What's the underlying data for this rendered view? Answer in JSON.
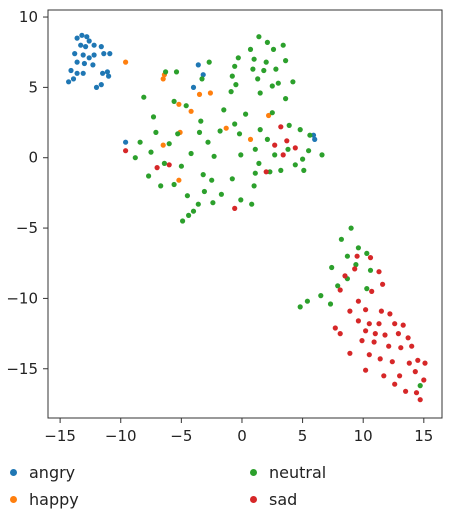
{
  "chart_data": {
    "type": "scatter",
    "title": "",
    "xlabel": "",
    "ylabel": "",
    "xlim": [
      -16,
      16.5
    ],
    "ylim": [
      -18.5,
      10.5
    ],
    "xticks": [
      -15,
      -10,
      -5,
      0,
      5,
      10,
      15
    ],
    "yticks": [
      -15,
      -10,
      -5,
      0,
      5,
      10
    ],
    "grid": false,
    "legend_position": "bottom",
    "series": [
      {
        "name": "angry",
        "color": "#1f77b4",
        "points": [
          [
            -13.6,
            8.5
          ],
          [
            -13.2,
            8.7
          ],
          [
            -12.8,
            8.6
          ],
          [
            -12.6,
            8.3
          ],
          [
            -13.3,
            8.0
          ],
          [
            -12.9,
            7.9
          ],
          [
            -12.2,
            8.0
          ],
          [
            -11.6,
            7.9
          ],
          [
            -13.8,
            7.4
          ],
          [
            -13.1,
            7.3
          ],
          [
            -12.6,
            7.1
          ],
          [
            -12.2,
            7.3
          ],
          [
            -11.4,
            7.4
          ],
          [
            -10.9,
            7.4
          ],
          [
            -13.6,
            6.8
          ],
          [
            -13.0,
            6.7
          ],
          [
            -12.3,
            6.6
          ],
          [
            -14.1,
            6.2
          ],
          [
            -13.6,
            6.0
          ],
          [
            -13.1,
            6.0
          ],
          [
            -11.5,
            6.0
          ],
          [
            -13.9,
            5.6
          ],
          [
            -14.3,
            5.4
          ],
          [
            -11.6,
            5.2
          ],
          [
            -11.0,
            5.8
          ],
          [
            -11.1,
            6.1
          ],
          [
            -12.0,
            5.0
          ],
          [
            -3.6,
            6.6
          ],
          [
            -3.2,
            5.9
          ],
          [
            -4.0,
            5.0
          ],
          [
            -9.6,
            1.1
          ],
          [
            5.9,
            1.6
          ],
          [
            6.0,
            1.3
          ]
        ]
      },
      {
        "name": "happy",
        "color": "#ff7f0e",
        "points": [
          [
            -9.6,
            6.8
          ],
          [
            -6.5,
            5.6
          ],
          [
            -6.4,
            5.9
          ],
          [
            -5.2,
            3.8
          ],
          [
            -4.2,
            3.3
          ],
          [
            -3.5,
            4.5
          ],
          [
            -2.6,
            4.6
          ],
          [
            -5.1,
            1.8
          ],
          [
            -6.5,
            0.9
          ],
          [
            -5.2,
            -1.6
          ],
          [
            -1.3,
            2.1
          ],
          [
            0.7,
            1.3
          ],
          [
            2.2,
            3.0
          ]
        ]
      },
      {
        "name": "neutral",
        "color": "#2ca02c",
        "points": [
          [
            1.4,
            8.6
          ],
          [
            2.1,
            8.2
          ],
          [
            3.4,
            8.0
          ],
          [
            0.7,
            7.7
          ],
          [
            2.6,
            7.7
          ],
          [
            -0.3,
            7.1
          ],
          [
            1.0,
            7.0
          ],
          [
            2.0,
            6.8
          ],
          [
            3.6,
            6.9
          ],
          [
            -2.7,
            6.8
          ],
          [
            -0.6,
            6.5
          ],
          [
            0.9,
            6.3
          ],
          [
            1.8,
            6.2
          ],
          [
            2.8,
            6.3
          ],
          [
            -6.3,
            6.1
          ],
          [
            -5.4,
            6.1
          ],
          [
            -0.8,
            5.8
          ],
          [
            1.3,
            5.6
          ],
          [
            -3.3,
            5.6
          ],
          [
            3.0,
            5.3
          ],
          [
            4.2,
            5.4
          ],
          [
            -0.5,
            5.2
          ],
          [
            2.5,
            5.1
          ],
          [
            -0.9,
            4.7
          ],
          [
            1.5,
            4.6
          ],
          [
            3.6,
            4.2
          ],
          [
            -8.1,
            4.3
          ],
          [
            -5.6,
            4.0
          ],
          [
            -4.6,
            3.7
          ],
          [
            -1.5,
            3.4
          ],
          [
            0.3,
            3.1
          ],
          [
            2.5,
            3.2
          ],
          [
            -7.3,
            2.9
          ],
          [
            -3.4,
            2.6
          ],
          [
            -0.6,
            2.4
          ],
          [
            1.5,
            2.0
          ],
          [
            3.9,
            2.3
          ],
          [
            4.8,
            2.0
          ],
          [
            -7.1,
            1.8
          ],
          [
            -5.3,
            1.7
          ],
          [
            -3.5,
            1.8
          ],
          [
            -1.8,
            1.9
          ],
          [
            -0.2,
            1.7
          ],
          [
            5.6,
            1.6
          ],
          [
            2.1,
            1.3
          ],
          [
            -8.4,
            1.1
          ],
          [
            -6.0,
            1.0
          ],
          [
            -2.8,
            1.1
          ],
          [
            3.8,
            0.6
          ],
          [
            5.5,
            0.5
          ],
          [
            1.1,
            0.6
          ],
          [
            -0.1,
            0.2
          ],
          [
            2.7,
            0.2
          ],
          [
            5.0,
            -0.1
          ],
          [
            -7.5,
            0.4
          ],
          [
            -4.2,
            0.3
          ],
          [
            -2.3,
            0.1
          ],
          [
            -8.8,
            0.0
          ],
          [
            6.6,
            0.2
          ],
          [
            1.4,
            -0.4
          ],
          [
            4.4,
            -0.5
          ],
          [
            -6.4,
            -0.4
          ],
          [
            -5.0,
            -0.6
          ],
          [
            3.2,
            -0.9
          ],
          [
            5.1,
            -0.9
          ],
          [
            -3.2,
            -1.2
          ],
          [
            -7.7,
            -1.3
          ],
          [
            1.1,
            -1.1
          ],
          [
            2.3,
            -1.0
          ],
          [
            -0.8,
            -1.5
          ],
          [
            -2.5,
            -1.6
          ],
          [
            -5.6,
            -1.9
          ],
          [
            -6.7,
            -2.0
          ],
          [
            -3.1,
            -2.4
          ],
          [
            1.0,
            -2.0
          ],
          [
            -1.7,
            -2.6
          ],
          [
            -4.5,
            -2.7
          ],
          [
            -0.1,
            -3.0
          ],
          [
            0.8,
            -3.3
          ],
          [
            -3.6,
            -3.3
          ],
          [
            -2.4,
            -3.2
          ],
          [
            -4.0,
            -3.8
          ],
          [
            -4.4,
            -4.1
          ],
          [
            -4.9,
            -4.5
          ],
          [
            9.0,
            -5.0
          ],
          [
            8.2,
            -5.8
          ],
          [
            9.6,
            -6.4
          ],
          [
            10.3,
            -6.8
          ],
          [
            8.7,
            -7.0
          ],
          [
            9.4,
            -7.6
          ],
          [
            7.4,
            -7.8
          ],
          [
            10.6,
            -8.0
          ],
          [
            8.7,
            -8.6
          ],
          [
            7.9,
            -9.1
          ],
          [
            10.3,
            -9.3
          ],
          [
            6.5,
            -9.8
          ],
          [
            7.3,
            -10.4
          ],
          [
            5.4,
            -10.2
          ],
          [
            4.8,
            -10.6
          ],
          [
            14.7,
            -16.2
          ]
        ]
      },
      {
        "name": "sad",
        "color": "#d62728",
        "points": [
          [
            3.2,
            2.2
          ],
          [
            3.7,
            1.2
          ],
          [
            2.7,
            0.9
          ],
          [
            4.4,
            0.7
          ],
          [
            3.4,
            0.2
          ],
          [
            -7.0,
            -0.7
          ],
          [
            -6.0,
            -0.5
          ],
          [
            -9.6,
            0.5
          ],
          [
            2.0,
            -1.0
          ],
          [
            -0.6,
            -3.6
          ],
          [
            9.5,
            -7.0
          ],
          [
            10.6,
            -7.1
          ],
          [
            9.3,
            -7.9
          ],
          [
            11.3,
            -8.1
          ],
          [
            8.5,
            -8.4
          ],
          [
            8.1,
            -9.4
          ],
          [
            10.7,
            -9.5
          ],
          [
            11.6,
            -9.0
          ],
          [
            9.6,
            -10.2
          ],
          [
            8.9,
            -10.9
          ],
          [
            10.2,
            -10.8
          ],
          [
            11.5,
            -10.9
          ],
          [
            12.2,
            -11.1
          ],
          [
            9.6,
            -11.6
          ],
          [
            10.5,
            -11.8
          ],
          [
            11.3,
            -11.8
          ],
          [
            12.6,
            -11.8
          ],
          [
            13.3,
            -11.9
          ],
          [
            7.7,
            -12.1
          ],
          [
            10.2,
            -12.3
          ],
          [
            11.0,
            -12.5
          ],
          [
            11.8,
            -12.6
          ],
          [
            12.9,
            -12.5
          ],
          [
            13.7,
            -12.8
          ],
          [
            8.1,
            -12.5
          ],
          [
            9.9,
            -13.0
          ],
          [
            10.9,
            -13.1
          ],
          [
            12.1,
            -13.4
          ],
          [
            13.1,
            -13.5
          ],
          [
            14.0,
            -13.4
          ],
          [
            8.9,
            -13.9
          ],
          [
            10.5,
            -14.0
          ],
          [
            11.4,
            -14.3
          ],
          [
            12.4,
            -14.5
          ],
          [
            13.8,
            -14.6
          ],
          [
            14.5,
            -14.4
          ],
          [
            10.2,
            -15.1
          ],
          [
            11.7,
            -15.5
          ],
          [
            13.0,
            -15.5
          ],
          [
            14.3,
            -15.2
          ],
          [
            12.6,
            -16.1
          ],
          [
            13.5,
            -16.6
          ],
          [
            14.4,
            -16.7
          ],
          [
            15.0,
            -15.8
          ],
          [
            15.1,
            -14.6
          ],
          [
            14.7,
            -17.2
          ]
        ]
      }
    ]
  }
}
